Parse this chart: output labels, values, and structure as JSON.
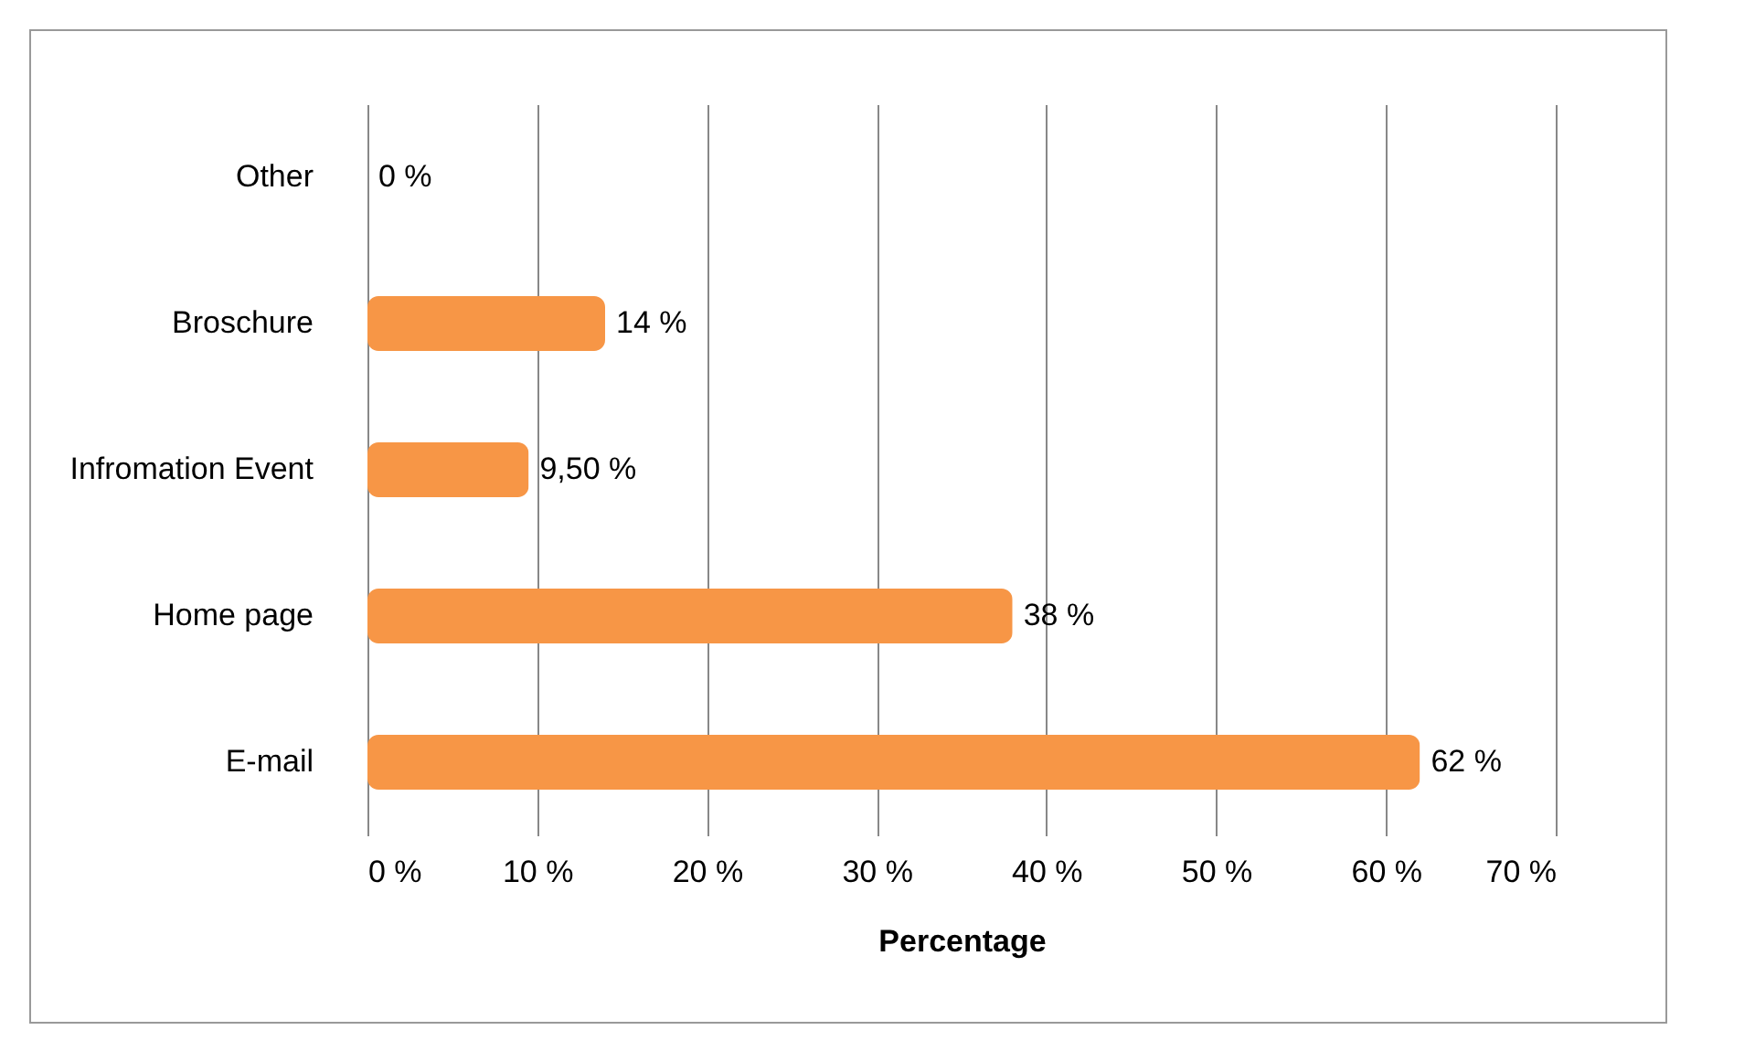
{
  "chart_data": {
    "type": "bar",
    "orientation": "horizontal",
    "xlabel": "Percentage",
    "categories": [
      "Other",
      "Broschure",
      "Infromation Event",
      "Home page",
      "E-mail"
    ],
    "values": [
      0,
      14,
      9.5,
      38,
      62
    ],
    "value_labels": [
      "0 %",
      "14 %",
      "9,50 %",
      "38 %",
      "62 %"
    ],
    "color": "#f79646",
    "xlim": [
      0,
      70
    ],
    "xticks": [
      {
        "value": 0,
        "label": "0 %"
      },
      {
        "value": 10,
        "label": "10 %"
      },
      {
        "value": 20,
        "label": "20 %"
      },
      {
        "value": 30,
        "label": "30 %"
      },
      {
        "value": 40,
        "label": "40 %"
      },
      {
        "value": 50,
        "label": "50 %"
      },
      {
        "value": 60,
        "label": "60 %"
      },
      {
        "value": 70,
        "label": "70 %"
      }
    ],
    "grid": "x"
  }
}
